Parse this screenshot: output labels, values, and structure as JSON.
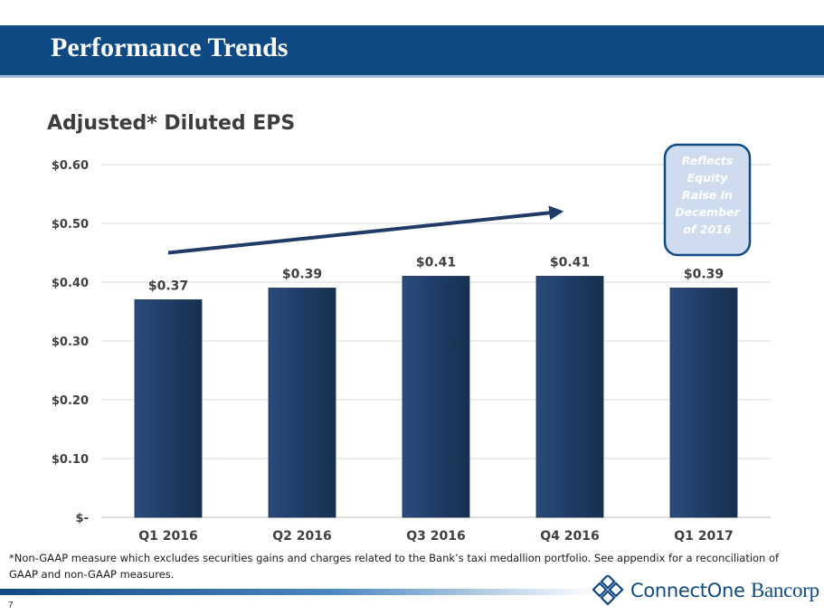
{
  "header": {
    "title": "Performance Trends"
  },
  "footnote": "*Non-GAAP measure which excludes securities gains and charges related to the Bank’s taxi medallion portfolio. See appendix for a reconciliation of GAAP and non-GAAP measures.",
  "page_number": "7",
  "logo": {
    "text_part1": "ConnectOne",
    "text_part2": "Bancorp"
  },
  "colors": {
    "header_band": "#0f4a85",
    "bar_fill": "#1f3c66",
    "trend_arrow": "#1f3c66",
    "callout_border": "#0f4a85",
    "callout_fill": "#cfdcef",
    "callout_text": "#ffffff"
  },
  "chart_data": {
    "type": "bar",
    "title": "Adjusted* Diluted EPS",
    "categories": [
      "Q1 2016",
      "Q2 2016",
      "Q3 2016",
      "Q4 2016",
      "Q1 2017"
    ],
    "values": [
      0.37,
      0.39,
      0.41,
      0.41,
      0.39
    ],
    "data_labels": [
      "$0.37",
      "$0.39",
      "$0.41",
      "$0.41",
      "$0.39"
    ],
    "ylim": [
      0,
      0.6
    ],
    "yticks": [
      0,
      0.1,
      0.2,
      0.3,
      0.4,
      0.5,
      0.6
    ],
    "ytick_labels": [
      "$-",
      "$0.10",
      "$0.20",
      "$0.30",
      "$0.40",
      "$0.50",
      "$0.60"
    ],
    "grid": true,
    "legend": "none",
    "trend_arrow": {
      "from": {
        "category": "Q1 2016",
        "y": 0.45
      },
      "to": {
        "category": "Q4 2016",
        "y": 0.52
      }
    },
    "annotation": {
      "text": [
        "Reflects",
        "Equity",
        "Raise in",
        "December",
        "of 2016"
      ],
      "category": "Q1 2017"
    }
  }
}
